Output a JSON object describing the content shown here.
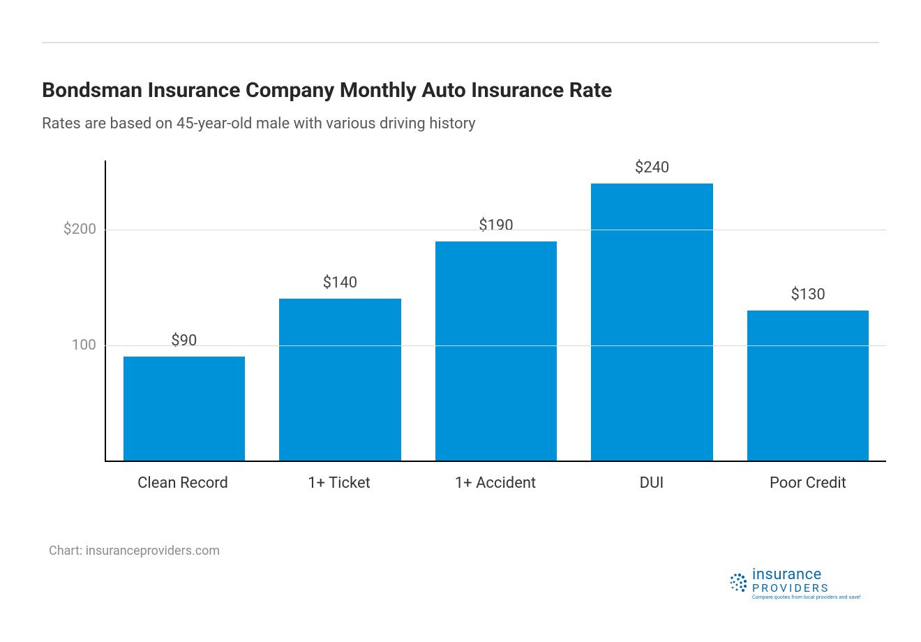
{
  "title": "Bondsman Insurance Company Monthly Auto Insurance Rate",
  "subtitle": "Rates are based on 45-year-old male with various driving history",
  "footer": "Chart: insuranceproviders.com",
  "chart": {
    "type": "bar",
    "categories": [
      "Clean Record",
      "1+ Ticket",
      "1+ Accident",
      "DUI",
      "Poor Credit"
    ],
    "values": [
      90,
      140,
      190,
      240,
      130
    ],
    "value_labels": [
      "$90",
      "$140",
      "$190",
      "$240",
      "$130"
    ],
    "bar_color": "#0092d8",
    "y_ticks": [
      100,
      200
    ],
    "y_tick_labels": [
      "100",
      "$200"
    ],
    "y_max": 260,
    "y_min": 0,
    "grid_color": "#d8d8d8",
    "axis_color": "#000000",
    "background_color": "#ffffff",
    "title_fontsize": 30,
    "subtitle_fontsize": 22,
    "label_fontsize": 22,
    "tick_fontsize": 21,
    "bar_width_ratio": 0.78
  },
  "logo": {
    "word1": "insurance",
    "word2": "PROVIDERS",
    "tagline": "Compare quotes from local providers and save!",
    "dot_color": "#0a6aa8",
    "text_color": "#0a6aa8"
  }
}
